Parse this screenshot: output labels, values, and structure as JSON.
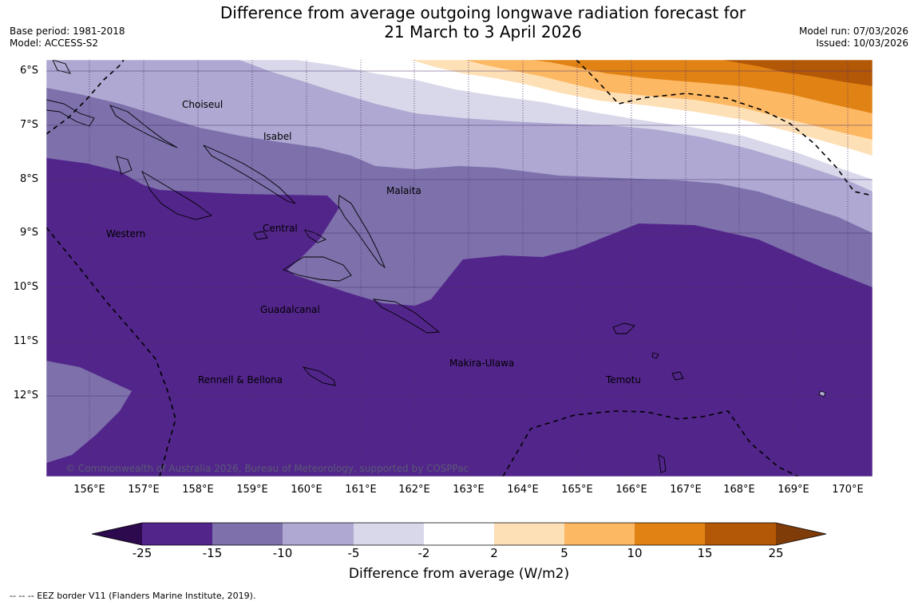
{
  "header": {
    "title_line1": "Difference from average outgoing longwave radiation forecast for",
    "title_line2": "21 March to 3 April 2026",
    "base_period": "Base period: 1981-2018",
    "model": "Model: ACCESS-S2",
    "model_run": "Model run: 07/03/2026",
    "issued": "Issued: 10/03/2026"
  },
  "map": {
    "lat_labels": [
      "6°S",
      "7°S",
      "8°S",
      "9°S",
      "10°S",
      "11°S",
      "12°S"
    ],
    "lon_labels": [
      "156°E",
      "157°E",
      "158°E",
      "159°E",
      "160°E",
      "161°E",
      "162°E",
      "163°E",
      "164°E",
      "165°E",
      "166°E",
      "167°E",
      "168°E",
      "169°E",
      "170°E"
    ],
    "regions": [
      "Choiseul",
      "Isabel",
      "Malaita",
      "Western",
      "Central",
      "Guadalcanal",
      "Rennell & Bellona",
      "Makira-Ulawa",
      "Temotu"
    ],
    "copyright": "© Commonwealth of Australia 2026, Bureau of Meteorology, supported by COSPPac"
  },
  "colorbar": {
    "ticks": [
      "-25",
      "-15",
      "-10",
      "-5",
      "-2",
      "2",
      "5",
      "10",
      "15",
      "25"
    ],
    "colors": [
      "#2d0a4e",
      "#52258a",
      "#7d70ab",
      "#aea8d2",
      "#d8d8ea",
      "#ffffff",
      "#fee0b6",
      "#fdb863",
      "#e08214",
      "#b35806",
      "#7f3b08"
    ],
    "title": "Difference from average (W/m2)"
  },
  "footer": {
    "legend": "--  --  -- EEZ border V11 (Flanders Marine Institute, 2019)."
  }
}
